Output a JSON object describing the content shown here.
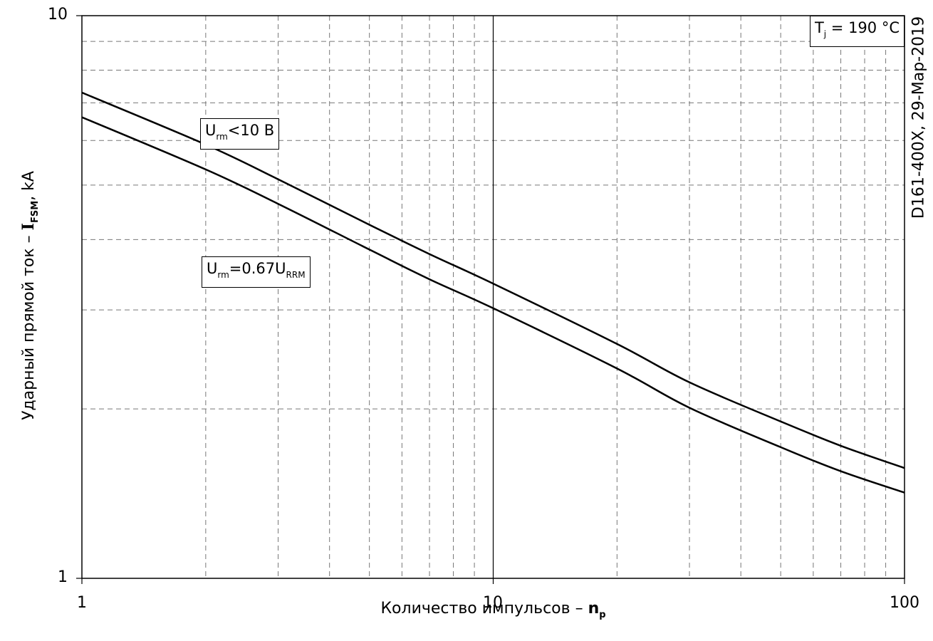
{
  "chart_data": {
    "type": "line",
    "xscale": "log",
    "yscale": "log",
    "xlim": [
      1,
      100
    ],
    "ylim": [
      1,
      10
    ],
    "grid": true,
    "xlabel": {
      "main": "Количество импульсов – ",
      "var": "n",
      "sub": "p"
    },
    "ylabel": {
      "main": "Ударный прямой ток – ",
      "var": "I",
      "sub": "FSM",
      "unit": ", kA"
    },
    "xticks": [
      "1",
      "10",
      "100"
    ],
    "yticks": [
      "1",
      "10"
    ],
    "annotation": {
      "var": "T",
      "sub": "j",
      "rest": " = 190 °C"
    },
    "stamp": "D161-400X, 29-Мар-2019",
    "series": [
      {
        "label": {
          "var": "U",
          "sub": "rm",
          "rest": "<10 В",
          "sub2": "",
          "rest2": ""
        },
        "x": [
          1,
          2,
          3,
          5,
          7,
          10,
          20,
          30,
          50,
          70,
          100
        ],
        "y": [
          7.3,
          5.9,
          5.12,
          4.25,
          3.77,
          3.34,
          2.61,
          2.23,
          1.9,
          1.72,
          1.57
        ]
      },
      {
        "label": {
          "var": "U",
          "sub": "rm",
          "rest": "=0.67U",
          "sub2": "RRM",
          "rest2": ""
        },
        "x": [
          1,
          2,
          3,
          5,
          7,
          10,
          20,
          30,
          50,
          70,
          100
        ],
        "y": [
          6.6,
          5.33,
          4.63,
          3.84,
          3.4,
          3.02,
          2.36,
          2.01,
          1.71,
          1.55,
          1.42
        ]
      }
    ]
  }
}
